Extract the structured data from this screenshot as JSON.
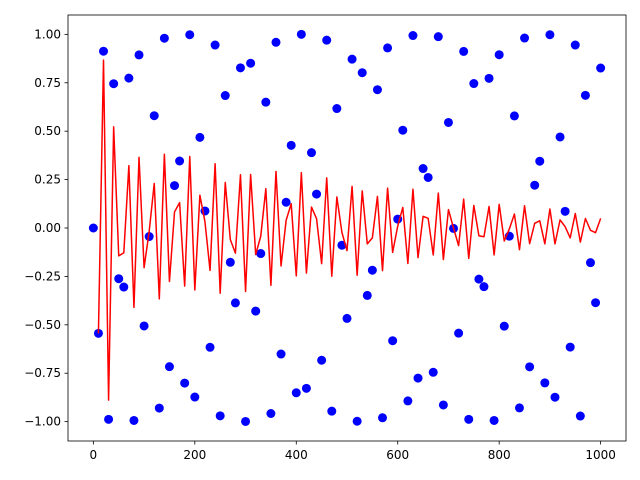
{
  "chart_data": {
    "type": "scatter",
    "xlim": [
      -50,
      1050
    ],
    "ylim": [
      -1.1,
      1.1
    ],
    "xticks": [
      0,
      200,
      400,
      600,
      800,
      1000
    ],
    "yticks": [
      {
        "value": -1,
        "label": "−1.00"
      },
      {
        "value": -0.75,
        "label": "−0.75"
      },
      {
        "value": -0.5,
        "label": "−0.50"
      },
      {
        "value": -0.25,
        "label": "−0.25"
      },
      {
        "value": 0,
        "label": "0.00"
      },
      {
        "value": 0.25,
        "label": "0.25"
      },
      {
        "value": 0.5,
        "label": "0.50"
      },
      {
        "value": 0.75,
        "label": "0.75"
      },
      {
        "value": 1,
        "label": "1.00"
      }
    ],
    "grid": false,
    "series": [
      {
        "type": "scatter",
        "color": "#0000ff",
        "x": [
          0,
          10,
          20,
          30,
          40,
          50,
          60,
          70,
          80,
          90,
          100,
          110,
          120,
          130,
          140,
          150,
          160,
          170,
          180,
          190,
          200,
          210,
          220,
          230,
          240,
          250,
          260,
          270,
          280,
          290,
          300,
          310,
          320,
          330,
          340,
          350,
          360,
          370,
          380,
          390,
          400,
          410,
          420,
          430,
          440,
          450,
          460,
          470,
          480,
          490,
          500,
          510,
          520,
          530,
          540,
          550,
          560,
          570,
          580,
          590,
          600,
          610,
          620,
          630,
          640,
          650,
          660,
          670,
          680,
          690,
          700,
          710,
          720,
          730,
          740,
          750,
          760,
          770,
          780,
          790,
          800,
          810,
          820,
          830,
          840,
          850,
          860,
          870,
          880,
          890,
          900,
          910,
          920,
          930,
          940,
          950,
          960,
          970,
          980,
          990,
          1000
        ],
        "values": [
          0,
          -0.544,
          0.913,
          -0.988,
          0.745,
          -0.262,
          -0.305,
          0.774,
          -0.994,
          0.894,
          -0.506,
          -0.044,
          0.58,
          -0.93,
          0.98,
          -0.716,
          0.219,
          0.346,
          -0.801,
          0.998,
          -0.873,
          0.468,
          0.088,
          -0.616,
          0.945,
          -0.97,
          0.684,
          -0.177,
          -0.387,
          0.827,
          -0.999,
          0.851,
          -0.429,
          -0.132,
          0.65,
          -0.958,
          0.959,
          -0.651,
          0.133,
          0.427,
          -0.851,
          1.0,
          -0.828,
          0.389,
          0.175,
          -0.683,
          0.97,
          -0.946,
          0.617,
          -0.089,
          -0.467,
          0.872,
          -0.998,
          0.802,
          -0.348,
          -0.218,
          0.714,
          -0.98,
          0.93,
          -0.582,
          0.046,
          0.505,
          -0.893,
          0.994,
          -0.775,
          0.307,
          0.261,
          -0.745,
          0.988,
          -0.914,
          0.545,
          -0.002,
          -0.543,
          0.912,
          -0.988,
          0.746,
          -0.264,
          -0.303,
          0.773,
          -0.994,
          0.895,
          -0.507,
          -0.042,
          0.579,
          -0.929,
          0.981,
          -0.717,
          0.221,
          0.345,
          -0.8,
          0.998,
          -0.874,
          0.47,
          0.086,
          -0.615,
          0.945,
          -0.971,
          0.685,
          -0.179,
          -0.386,
          0.826
        ]
      },
      {
        "type": "line",
        "color": "#ff0000",
        "x": [
          10,
          20,
          30,
          40,
          50,
          60,
          70,
          80,
          90,
          100,
          110,
          120,
          130,
          140,
          150,
          160,
          170,
          180,
          190,
          200,
          210,
          220,
          230,
          240,
          250,
          260,
          270,
          280,
          290,
          300,
          310,
          320,
          330,
          340,
          350,
          360,
          370,
          380,
          390,
          400,
          410,
          420,
          430,
          440,
          450,
          460,
          470,
          480,
          490,
          500,
          510,
          520,
          530,
          540,
          550,
          560,
          570,
          580,
          590,
          600,
          610,
          620,
          630,
          640,
          650,
          660,
          670,
          680,
          690,
          700,
          710,
          720,
          730,
          740,
          750,
          760,
          770,
          780,
          790,
          800,
          810,
          820,
          830,
          840,
          850,
          860,
          870,
          880,
          890,
          900,
          910,
          920,
          930,
          940,
          950,
          960,
          970,
          980,
          990,
          1000
        ],
        "values": [
          -0.544,
          0.867,
          -0.889,
          0.522,
          -0.144,
          -0.128,
          0.322,
          -0.41,
          0.365,
          -0.205,
          -0.018,
          0.23,
          -0.366,
          0.381,
          -0.276,
          0.083,
          0.131,
          -0.3,
          0.369,
          -0.32,
          0.169,
          0.032,
          -0.219,
          0.332,
          -0.337,
          0.235,
          -0.06,
          -0.13,
          0.275,
          -0.328,
          0.276,
          -0.137,
          -0.042,
          0.203,
          -0.296,
          0.292,
          -0.196,
          0.04,
          0.125,
          -0.247,
          0.286,
          -0.233,
          0.108,
          0.048,
          -0.184,
          0.259,
          -0.249,
          0.16,
          -0.023,
          -0.117,
          0.215,
          -0.244,
          0.192,
          -0.082,
          -0.051,
          0.163,
          -0.22,
          0.206,
          -0.126,
          0.01,
          0.106,
          -0.183,
          0.2,
          -0.153,
          0.06,
          0.05,
          -0.139,
          0.18,
          -0.163,
          0.095,
          0,
          -0.091,
          0.149,
          -0.157,
          0.116,
          -0.04,
          -0.045,
          0.111,
          -0.139,
          0.122,
          -0.067,
          -0.005,
          0.072,
          -0.112,
          0.115,
          -0.081,
          0.024,
          0.037,
          -0.082,
          0.098,
          -0.082,
          0.042,
          0.007,
          -0.051,
          0.075,
          -0.073,
          0.049,
          -0.012,
          -0.024,
          0.05
        ]
      }
    ]
  }
}
